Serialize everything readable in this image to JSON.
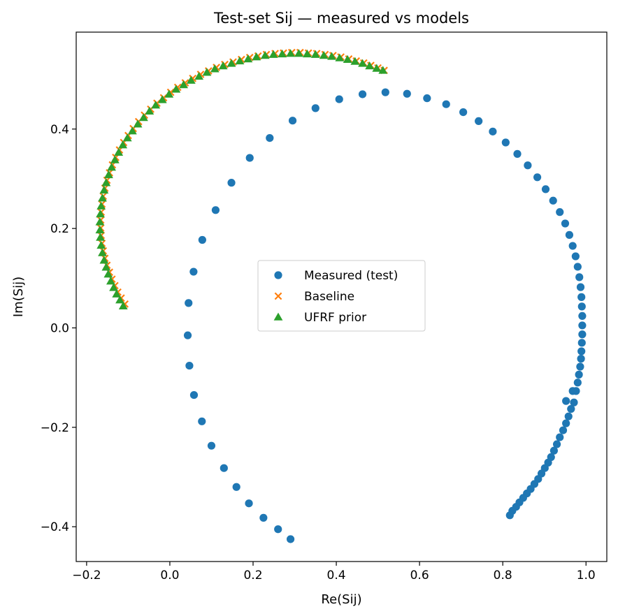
{
  "chart_data": {
    "type": "scatter",
    "title": "Test-set Sij — measured vs models",
    "xlabel": "Re(Sij)",
    "ylabel": "Im(Sij)",
    "xlim": [
      -0.225,
      1.05
    ],
    "ylim": [
      -0.47,
      0.595
    ],
    "xticks": [
      -0.2,
      0.0,
      0.2,
      0.4,
      0.6,
      0.8,
      1.0
    ],
    "xtick_labels": [
      "−0.2",
      "0.0",
      "0.2",
      "0.4",
      "0.6",
      "0.8",
      "1.0"
    ],
    "yticks": [
      -0.4,
      -0.2,
      0.0,
      0.2,
      0.4
    ],
    "ytick_labels": [
      "−0.4",
      "−0.2",
      "0.0",
      "0.2",
      "0.4"
    ],
    "grid": false,
    "legend_position": "center",
    "series": [
      {
        "name": "Measured (test)",
        "marker": "circle",
        "color": "#1f77b4",
        "points": [
          [
            0.29,
            -0.425
          ],
          [
            0.26,
            -0.405
          ],
          [
            0.225,
            -0.382
          ],
          [
            0.19,
            -0.353
          ],
          [
            0.16,
            -0.32
          ],
          [
            0.13,
            -0.282
          ],
          [
            0.1,
            -0.237
          ],
          [
            0.077,
            -0.188
          ],
          [
            0.058,
            -0.135
          ],
          [
            0.047,
            -0.076
          ],
          [
            0.043,
            -0.015
          ],
          [
            0.045,
            0.05
          ],
          [
            0.057,
            0.113
          ],
          [
            0.078,
            0.177
          ],
          [
            0.11,
            0.237
          ],
          [
            0.148,
            0.292
          ],
          [
            0.192,
            0.342
          ],
          [
            0.24,
            0.382
          ],
          [
            0.295,
            0.417
          ],
          [
            0.35,
            0.442
          ],
          [
            0.407,
            0.46
          ],
          [
            0.463,
            0.47
          ],
          [
            0.518,
            0.474
          ],
          [
            0.57,
            0.471
          ],
          [
            0.618,
            0.462
          ],
          [
            0.664,
            0.45
          ],
          [
            0.705,
            0.434
          ],
          [
            0.742,
            0.416
          ],
          [
            0.776,
            0.395
          ],
          [
            0.807,
            0.373
          ],
          [
            0.835,
            0.35
          ],
          [
            0.86,
            0.327
          ],
          [
            0.883,
            0.303
          ],
          [
            0.903,
            0.279
          ],
          [
            0.921,
            0.256
          ],
          [
            0.937,
            0.233
          ],
          [
            0.95,
            0.21
          ],
          [
            0.96,
            0.187
          ],
          [
            0.968,
            0.165
          ],
          [
            0.975,
            0.144
          ],
          [
            0.98,
            0.123
          ],
          [
            0.984,
            0.102
          ],
          [
            0.987,
            0.082
          ],
          [
            0.989,
            0.062
          ],
          [
            0.99,
            0.043
          ],
          [
            0.991,
            0.024
          ],
          [
            0.991,
            0.005
          ],
          [
            0.991,
            -0.013
          ],
          [
            0.99,
            -0.03
          ],
          [
            0.989,
            -0.047
          ],
          [
            0.988,
            -0.062
          ],
          [
            0.986,
            -0.078
          ],
          [
            0.983,
            -0.094
          ],
          [
            0.98,
            -0.11
          ],
          [
            0.976,
            -0.127
          ],
          [
            0.971,
            -0.15
          ],
          [
            0.968,
            -0.127
          ],
          [
            0.964,
            -0.163
          ],
          [
            0.958,
            -0.178
          ],
          [
            0.952,
            -0.147
          ],
          [
            0.952,
            -0.192
          ],
          [
            0.945,
            -0.206
          ],
          [
            0.937,
            -0.22
          ],
          [
            0.93,
            -0.234
          ],
          [
            0.923,
            -0.247
          ],
          [
            0.916,
            -0.26
          ],
          [
            0.909,
            -0.271
          ],
          [
            0.901,
            -0.282
          ],
          [
            0.893,
            -0.293
          ],
          [
            0.885,
            -0.304
          ],
          [
            0.876,
            -0.314
          ],
          [
            0.867,
            -0.324
          ],
          [
            0.858,
            -0.333
          ],
          [
            0.849,
            -0.342
          ],
          [
            0.84,
            -0.351
          ],
          [
            0.832,
            -0.36
          ],
          [
            0.823,
            -0.368
          ],
          [
            0.817,
            -0.377
          ]
        ]
      },
      {
        "name": "Baseline",
        "marker": "x",
        "color": "#ff7f0e",
        "points": [
          [
            -0.108,
            0.048
          ],
          [
            -0.117,
            0.06
          ],
          [
            -0.125,
            0.072
          ],
          [
            -0.132,
            0.085
          ],
          [
            -0.139,
            0.098
          ],
          [
            -0.145,
            0.112
          ],
          [
            -0.151,
            0.126
          ],
          [
            -0.156,
            0.14
          ],
          [
            -0.16,
            0.155
          ],
          [
            -0.163,
            0.17
          ],
          [
            -0.165,
            0.186
          ],
          [
            -0.166,
            0.201
          ],
          [
            -0.166,
            0.217
          ],
          [
            -0.165,
            0.233
          ],
          [
            -0.163,
            0.249
          ],
          [
            -0.16,
            0.265
          ],
          [
            -0.156,
            0.281
          ],
          [
            -0.151,
            0.297
          ],
          [
            -0.145,
            0.312
          ],
          [
            -0.138,
            0.328
          ],
          [
            -0.13,
            0.343
          ],
          [
            -0.121,
            0.358
          ],
          [
            -0.111,
            0.373
          ],
          [
            -0.1,
            0.387
          ],
          [
            -0.088,
            0.401
          ],
          [
            -0.075,
            0.415
          ],
          [
            -0.061,
            0.428
          ],
          [
            -0.046,
            0.44
          ],
          [
            -0.031,
            0.452
          ],
          [
            -0.015,
            0.463
          ],
          [
            0.002,
            0.474
          ],
          [
            0.019,
            0.484
          ],
          [
            0.037,
            0.493
          ],
          [
            0.055,
            0.502
          ],
          [
            0.074,
            0.51
          ],
          [
            0.093,
            0.517
          ],
          [
            0.112,
            0.524
          ],
          [
            0.132,
            0.53
          ],
          [
            0.152,
            0.535
          ],
          [
            0.172,
            0.54
          ],
          [
            0.192,
            0.544
          ],
          [
            0.212,
            0.547
          ],
          [
            0.232,
            0.55
          ],
          [
            0.253,
            0.552
          ],
          [
            0.273,
            0.553
          ],
          [
            0.293,
            0.554
          ],
          [
            0.313,
            0.554
          ],
          [
            0.333,
            0.553
          ],
          [
            0.353,
            0.552
          ],
          [
            0.373,
            0.55
          ],
          [
            0.392,
            0.548
          ],
          [
            0.411,
            0.545
          ],
          [
            0.43,
            0.541
          ],
          [
            0.448,
            0.537
          ],
          [
            0.466,
            0.533
          ],
          [
            0.483,
            0.528
          ],
          [
            0.5,
            0.523
          ],
          [
            0.515,
            0.518
          ]
        ]
      },
      {
        "name": "UFRF prior",
        "marker": "triangle",
        "color": "#2ca02c",
        "points": [
          [
            -0.112,
            0.044
          ],
          [
            -0.12,
            0.056
          ],
          [
            -0.128,
            0.068
          ],
          [
            -0.135,
            0.081
          ],
          [
            -0.142,
            0.094
          ],
          [
            -0.148,
            0.108
          ],
          [
            -0.153,
            0.122
          ],
          [
            -0.158,
            0.136
          ],
          [
            -0.162,
            0.151
          ],
          [
            -0.165,
            0.166
          ],
          [
            -0.167,
            0.182
          ],
          [
            -0.168,
            0.197
          ],
          [
            -0.168,
            0.213
          ],
          [
            -0.167,
            0.229
          ],
          [
            -0.165,
            0.245
          ],
          [
            -0.162,
            0.261
          ],
          [
            -0.158,
            0.277
          ],
          [
            -0.153,
            0.292
          ],
          [
            -0.147,
            0.308
          ],
          [
            -0.14,
            0.323
          ],
          [
            -0.132,
            0.338
          ],
          [
            -0.123,
            0.353
          ],
          [
            -0.113,
            0.368
          ],
          [
            -0.102,
            0.382
          ],
          [
            -0.09,
            0.396
          ],
          [
            -0.077,
            0.41
          ],
          [
            -0.063,
            0.423
          ],
          [
            -0.049,
            0.436
          ],
          [
            -0.034,
            0.448
          ],
          [
            -0.018,
            0.459
          ],
          [
            -0.002,
            0.47
          ],
          [
            0.015,
            0.48
          ],
          [
            0.033,
            0.489
          ],
          [
            0.051,
            0.498
          ],
          [
            0.07,
            0.506
          ],
          [
            0.089,
            0.514
          ],
          [
            0.108,
            0.521
          ],
          [
            0.128,
            0.527
          ],
          [
            0.148,
            0.532
          ],
          [
            0.168,
            0.537
          ],
          [
            0.188,
            0.541
          ],
          [
            0.208,
            0.545
          ],
          [
            0.229,
            0.548
          ],
          [
            0.249,
            0.55
          ],
          [
            0.27,
            0.551
          ],
          [
            0.29,
            0.552
          ],
          [
            0.31,
            0.552
          ],
          [
            0.33,
            0.551
          ],
          [
            0.35,
            0.55
          ],
          [
            0.37,
            0.548
          ],
          [
            0.389,
            0.546
          ],
          [
            0.408,
            0.543
          ],
          [
            0.427,
            0.54
          ],
          [
            0.445,
            0.536
          ],
          [
            0.463,
            0.532
          ],
          [
            0.48,
            0.527
          ],
          [
            0.497,
            0.522
          ],
          [
            0.512,
            0.518
          ]
        ]
      }
    ]
  }
}
